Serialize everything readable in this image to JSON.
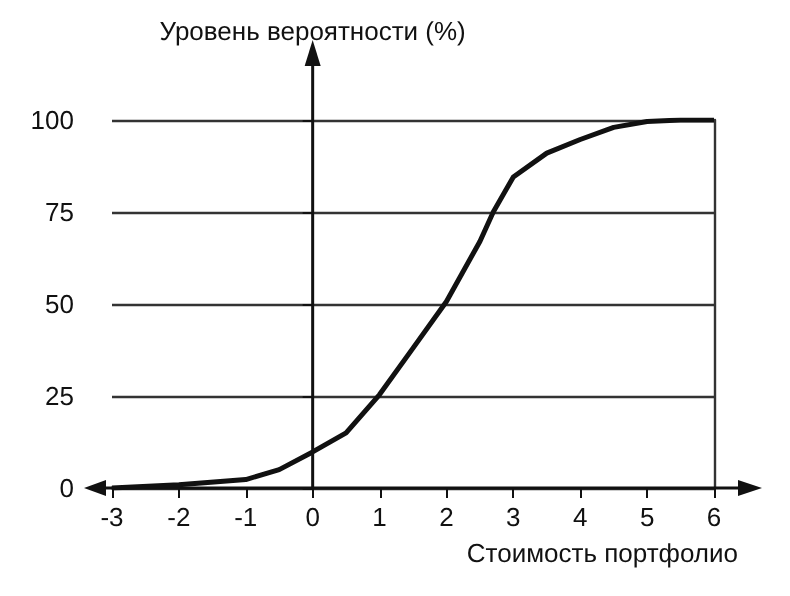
{
  "chart_data": {
    "type": "line",
    "ylabel": "Уровень вероятности (%)",
    "xlabel": "Стоимость портфолио",
    "x": [
      -3,
      -2,
      -1,
      -0.5,
      0,
      0.5,
      1,
      1.5,
      2,
      2.5,
      2.7,
      3,
      3.5,
      4,
      4.5,
      5,
      5.5,
      6
    ],
    "series": [
      {
        "color": "#111111",
        "values": [
          0,
          0.9,
          2.3,
          5,
          9.8,
          15,
          25.4,
          38,
          50.7,
          67,
          75,
          84.5,
          91,
          94.7,
          98,
          99.6,
          100,
          100
        ]
      }
    ],
    "xlim": [
      -3,
      6
    ],
    "xticks": [
      -3,
      -2,
      -1,
      0,
      1,
      2,
      3,
      4,
      5,
      6
    ],
    "ylim": [
      0,
      100
    ],
    "yticks": [
      0,
      25,
      50,
      75,
      100
    ],
    "grid": "y",
    "marker": "none",
    "line_style": "solid"
  }
}
